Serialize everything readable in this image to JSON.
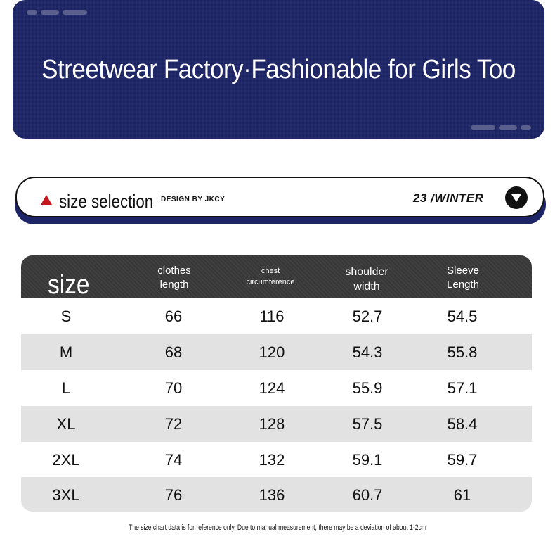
{
  "banner": {
    "title": "Streetwear Factory·Fashionable for Girls Too"
  },
  "size_bar": {
    "label": "size selection",
    "design": "DESIGN  BY JKCY",
    "season": "23 /WINTER"
  },
  "table": {
    "headers": {
      "size": "size",
      "clothes_length": [
        "clothes",
        "length"
      ],
      "chest": [
        "chest",
        "circumference"
      ],
      "shoulder": [
        "shoulder",
        "width"
      ],
      "sleeve": [
        "Sleeve",
        "Length"
      ]
    },
    "rows": [
      [
        "S",
        "66",
        "116",
        "52.7",
        "54.5"
      ],
      [
        "M",
        "68",
        "120",
        "54.3",
        "55.8"
      ],
      [
        "L",
        "70",
        "124",
        "55.9",
        "57.1"
      ],
      [
        "XL",
        "72",
        "128",
        "57.5",
        "58.4"
      ],
      [
        "2XL",
        "74",
        "132",
        "59.1",
        "59.7"
      ],
      [
        "3XL",
        "76",
        "136",
        "60.7",
        "61"
      ]
    ]
  },
  "footnote": "The size chart data is for reference only. Due to manual measurement, there may be a deviation of about 1-2cm",
  "colors": {
    "banner": "#1d2567",
    "header": "#3a3a3a",
    "alt_row": "#e2e2e2",
    "accent": "#c4161c"
  }
}
